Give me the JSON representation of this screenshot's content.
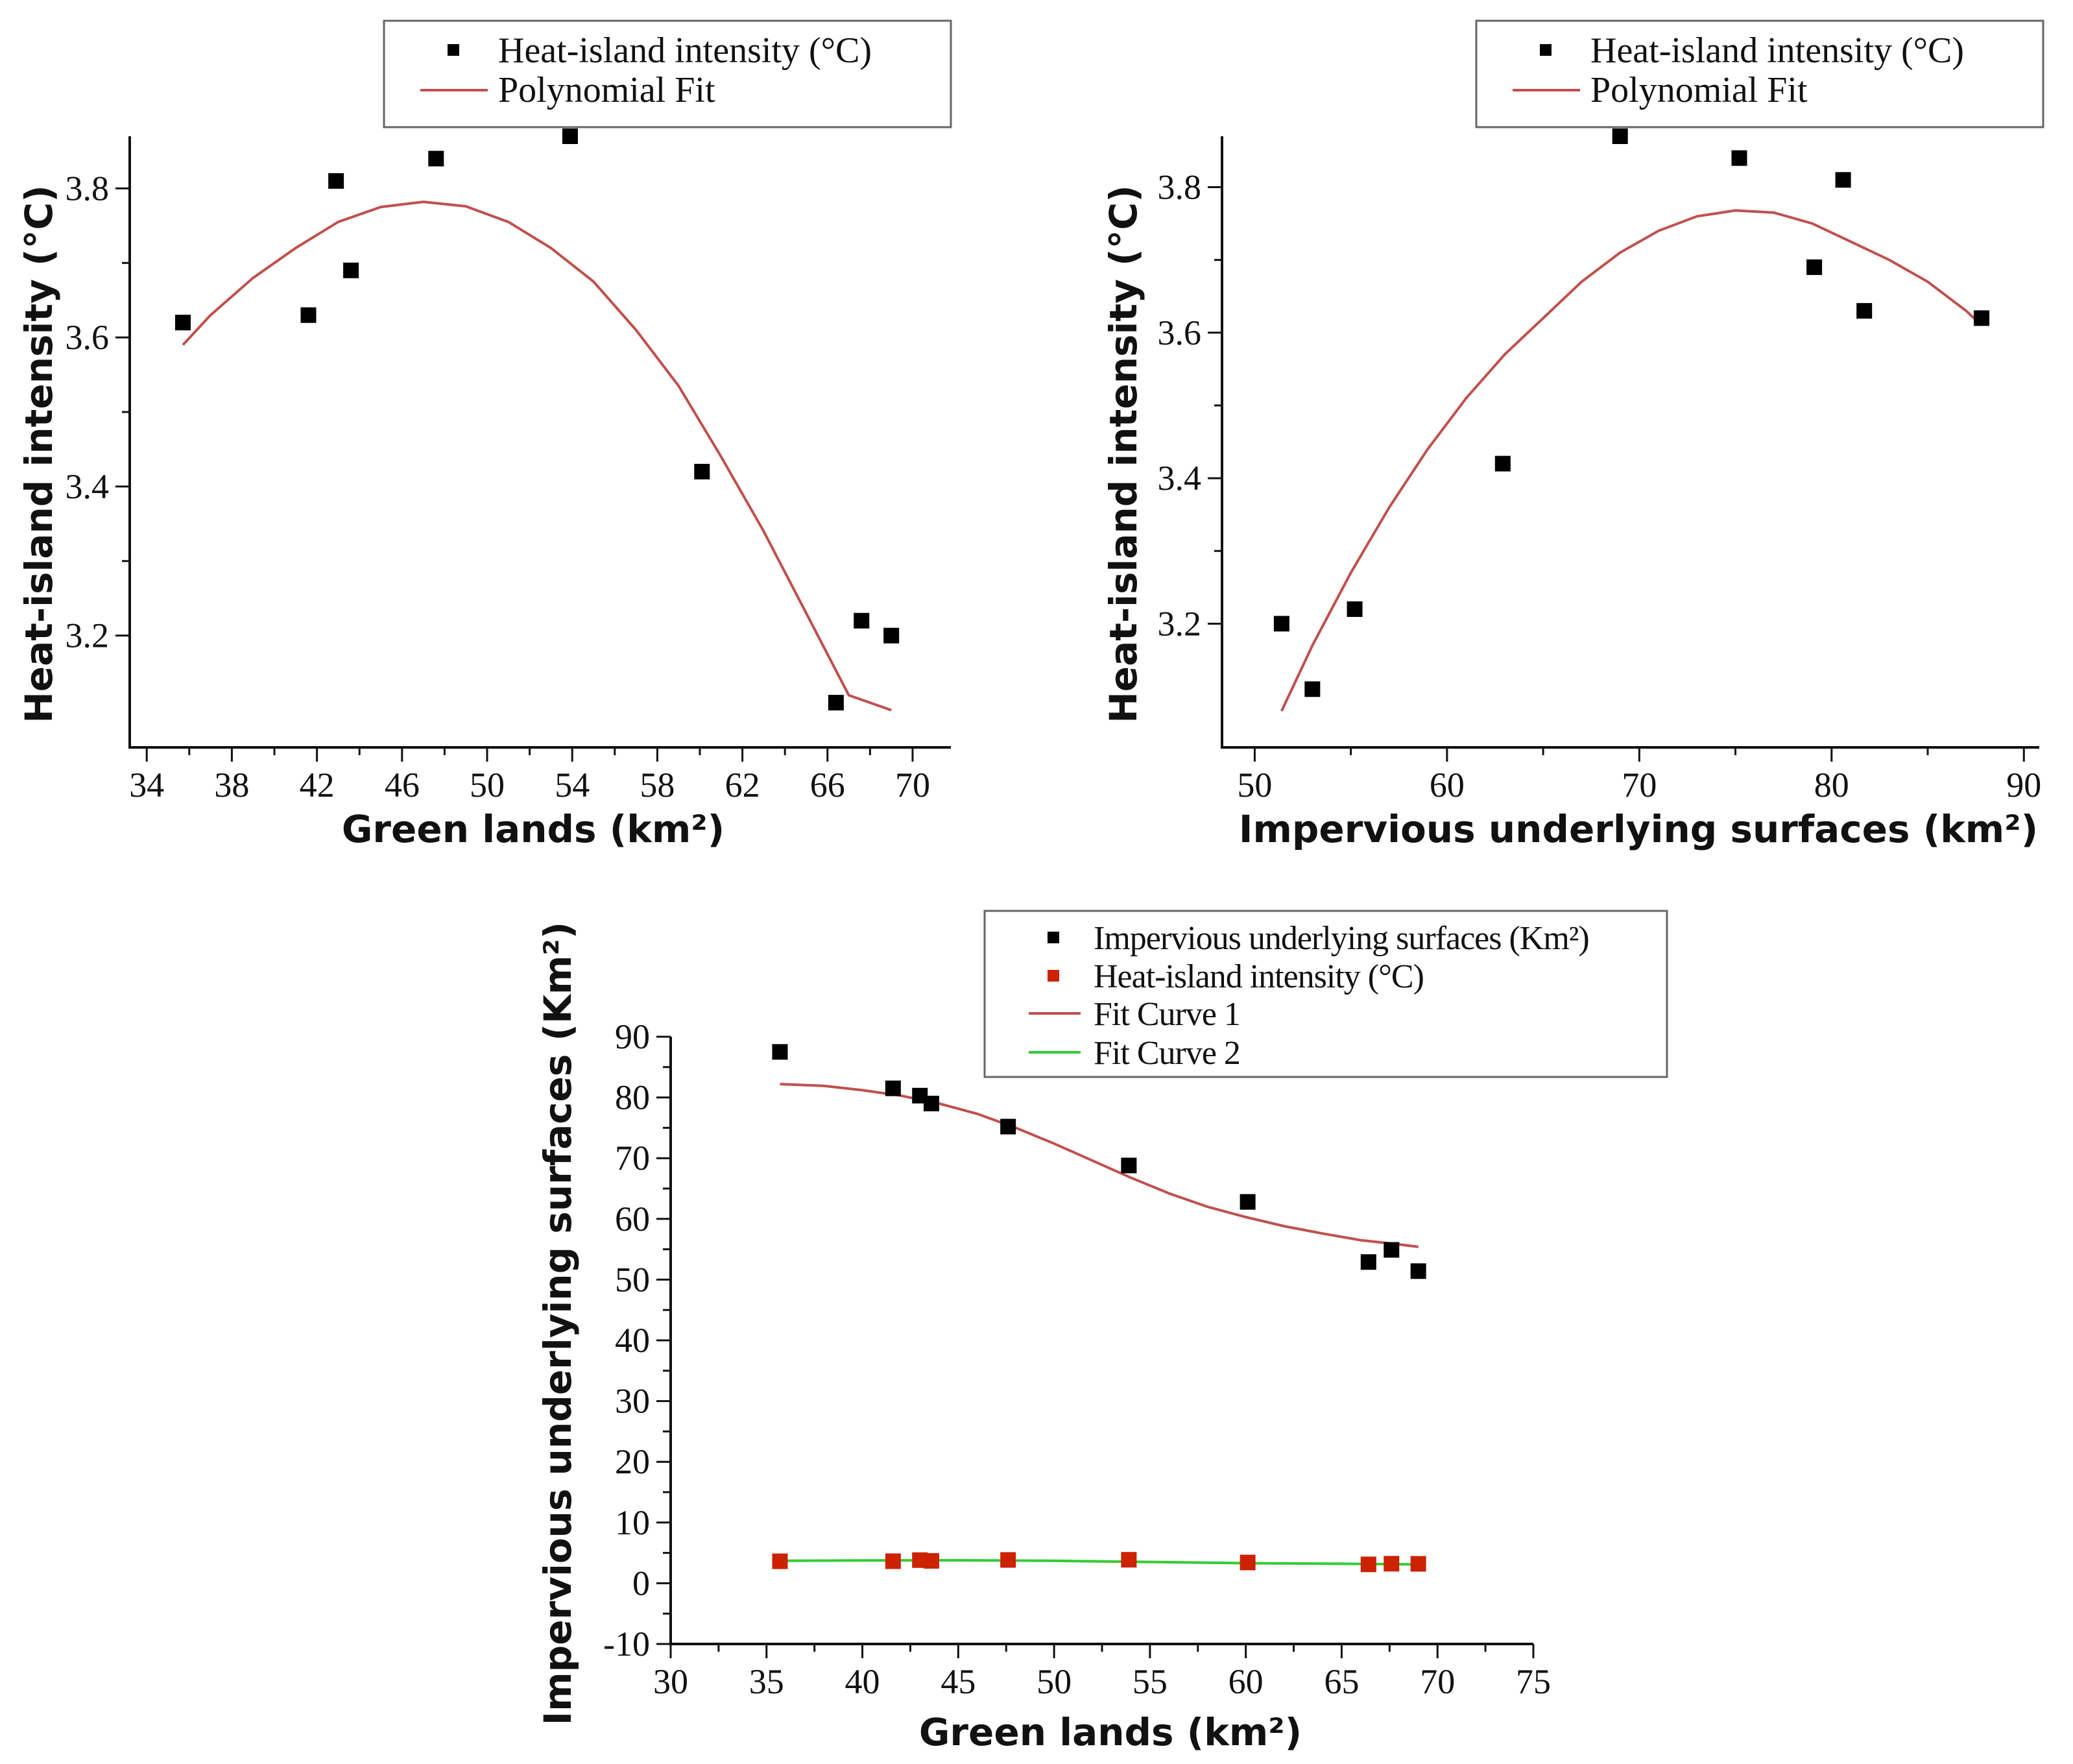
{
  "figure": {
    "colors": {
      "marker_black": "#000000",
      "marker_red": "#cc2200",
      "fit_brown": "#c0504d",
      "fit_green": "#33cc33"
    }
  },
  "chart_data": [
    {
      "id": "top-left",
      "type": "scatter",
      "xlabel": "Green lands (km²)",
      "ylabel": "Heat-island intensity (°C)",
      "xlim": [
        33.2,
        71.8
      ],
      "ylim": [
        3.05,
        3.87
      ],
      "xticks": [
        "34",
        "38",
        "42",
        "46",
        "50",
        "54",
        "58",
        "62",
        "66",
        "70"
      ],
      "yticks": [
        "3.2",
        "3.4",
        "3.6",
        "3.8"
      ],
      "legend": [
        "Heat-island intensity (°C)",
        "Polynomial Fit"
      ],
      "legend_position": "top-center",
      "series": [
        {
          "name": "Heat-island intensity (°C)",
          "kind": "markers",
          "points": [
            [
              35.7,
              3.62
            ],
            [
              41.6,
              3.63
            ],
            [
              42.9,
              3.81
            ],
            [
              43.6,
              3.69
            ],
            [
              47.6,
              3.84
            ],
            [
              53.9,
              3.87
            ],
            [
              60.1,
              3.42
            ],
            [
              66.4,
              3.11
            ],
            [
              67.6,
              3.22
            ],
            [
              69.0,
              3.2
            ]
          ]
        },
        {
          "name": "Polynomial Fit",
          "kind": "line",
          "points": [
            [
              35.7,
              3.59
            ],
            [
              37,
              3.63
            ],
            [
              39,
              3.68
            ],
            [
              41,
              3.72
            ],
            [
              43,
              3.755
            ],
            [
              45,
              3.775
            ],
            [
              47,
              3.782
            ],
            [
              49,
              3.776
            ],
            [
              51,
              3.755
            ],
            [
              53,
              3.72
            ],
            [
              55,
              3.675
            ],
            [
              57,
              3.61
            ],
            [
              59,
              3.535
            ],
            [
              61,
              3.44
            ],
            [
              63,
              3.34
            ],
            [
              65,
              3.23
            ],
            [
              67,
              3.12
            ],
            [
              69,
              3.1
            ]
          ]
        }
      ]
    },
    {
      "id": "top-right",
      "type": "scatter",
      "xlabel": "Impervious underlying surfaces (km²)",
      "ylabel": "Heat-island intensity (°C)",
      "xlim": [
        48.3,
        90.8
      ],
      "ylim": [
        3.03,
        3.87
      ],
      "xticks": [
        "50",
        "60",
        "70",
        "80",
        "90"
      ],
      "yticks": [
        "3.2",
        "3.4",
        "3.6",
        "3.8"
      ],
      "legend": [
        "Heat-island intensity (°C)",
        "Polynomial Fit"
      ],
      "legend_position": "top-right",
      "series": [
        {
          "name": "Heat-island intensity (°C)",
          "kind": "markers",
          "points": [
            [
              51.4,
              3.2
            ],
            [
              53.0,
              3.11
            ],
            [
              55.2,
              3.22
            ],
            [
              62.9,
              3.42
            ],
            [
              69.0,
              3.87
            ],
            [
              75.2,
              3.84
            ],
            [
              79.1,
              3.69
            ],
            [
              80.6,
              3.81
            ],
            [
              81.7,
              3.63
            ],
            [
              87.8,
              3.62
            ]
          ]
        },
        {
          "name": "Polynomial Fit",
          "kind": "line",
          "points": [
            [
              51.4,
              3.08
            ],
            [
              53,
              3.17
            ],
            [
              55,
              3.27
            ],
            [
              57,
              3.36
            ],
            [
              59,
              3.44
            ],
            [
              61,
              3.51
            ],
            [
              63,
              3.57
            ],
            [
              65,
              3.62
            ],
            [
              67,
              3.67
            ],
            [
              69,
              3.71
            ],
            [
              71,
              3.74
            ],
            [
              73,
              3.76
            ],
            [
              75,
              3.768
            ],
            [
              77,
              3.765
            ],
            [
              79,
              3.75
            ],
            [
              81,
              3.725
            ],
            [
              83,
              3.7
            ],
            [
              85,
              3.67
            ],
            [
              87,
              3.63
            ],
            [
              87.8,
              3.61
            ]
          ]
        }
      ]
    },
    {
      "id": "bottom",
      "type": "scatter",
      "xlabel": "Green lands (km²)",
      "ylabel": "Impervious underlying surfaces (Km²)",
      "xlim": [
        30,
        75
      ],
      "ylim": [
        -10,
        90
      ],
      "xticks": [
        "30",
        "35",
        "40",
        "45",
        "50",
        "55",
        "60",
        "65",
        "70",
        "75"
      ],
      "yticks": [
        "-10",
        "0",
        "10",
        "20",
        "30",
        "40",
        "50",
        "60",
        "70",
        "80",
        "90"
      ],
      "legend": [
        "Impervious underlying surfaces (Km²)",
        "Heat-island intensity (°C)",
        "Fit Curve 1",
        "Fit Curve 2"
      ],
      "legend_position": "top-right",
      "series": [
        {
          "name": "Impervious underlying surfaces (Km²)",
          "kind": "markers",
          "points": [
            [
              35.7,
              87.5
            ],
            [
              41.6,
              81.5
            ],
            [
              43.0,
              80.3
            ],
            [
              43.6,
              79.0
            ],
            [
              47.6,
              75.2
            ],
            [
              53.9,
              68.8
            ],
            [
              60.1,
              62.8
            ],
            [
              66.4,
              52.9
            ],
            [
              67.6,
              54.9
            ],
            [
              69.0,
              51.4
            ]
          ]
        },
        {
          "name": "Heat-island intensity (°C)",
          "kind": "markers",
          "points": [
            [
              35.7,
              3.62
            ],
            [
              41.6,
              3.63
            ],
            [
              43.0,
              3.81
            ],
            [
              43.6,
              3.69
            ],
            [
              47.6,
              3.84
            ],
            [
              53.9,
              3.87
            ],
            [
              60.1,
              3.42
            ],
            [
              66.4,
              3.11
            ],
            [
              67.6,
              3.22
            ],
            [
              69.0,
              3.2
            ]
          ]
        },
        {
          "name": "Fit Curve 1",
          "kind": "line",
          "points": [
            [
              35.7,
              82.2
            ],
            [
              38,
              81.9
            ],
            [
              40,
              81.2
            ],
            [
              42,
              80.3
            ],
            [
              44,
              79.0
            ],
            [
              46,
              77.3
            ],
            [
              48,
              75.0
            ],
            [
              50,
              72.4
            ],
            [
              52,
              69.6
            ],
            [
              54,
              66.8
            ],
            [
              56,
              64.2
            ],
            [
              58,
              62.0
            ],
            [
              60,
              60.3
            ],
            [
              62,
              58.8
            ],
            [
              64,
              57.6
            ],
            [
              66,
              56.5
            ],
            [
              68,
              55.8
            ],
            [
              69.0,
              55.4
            ]
          ]
        },
        {
          "name": "Fit Curve 2",
          "kind": "line",
          "points": [
            [
              35.7,
              3.7
            ],
            [
              40,
              3.75
            ],
            [
              45,
              3.78
            ],
            [
              50,
              3.7
            ],
            [
              55,
              3.5
            ],
            [
              60,
              3.3
            ],
            [
              65,
              3.2
            ],
            [
              69.0,
              3.1
            ]
          ]
        }
      ]
    }
  ]
}
